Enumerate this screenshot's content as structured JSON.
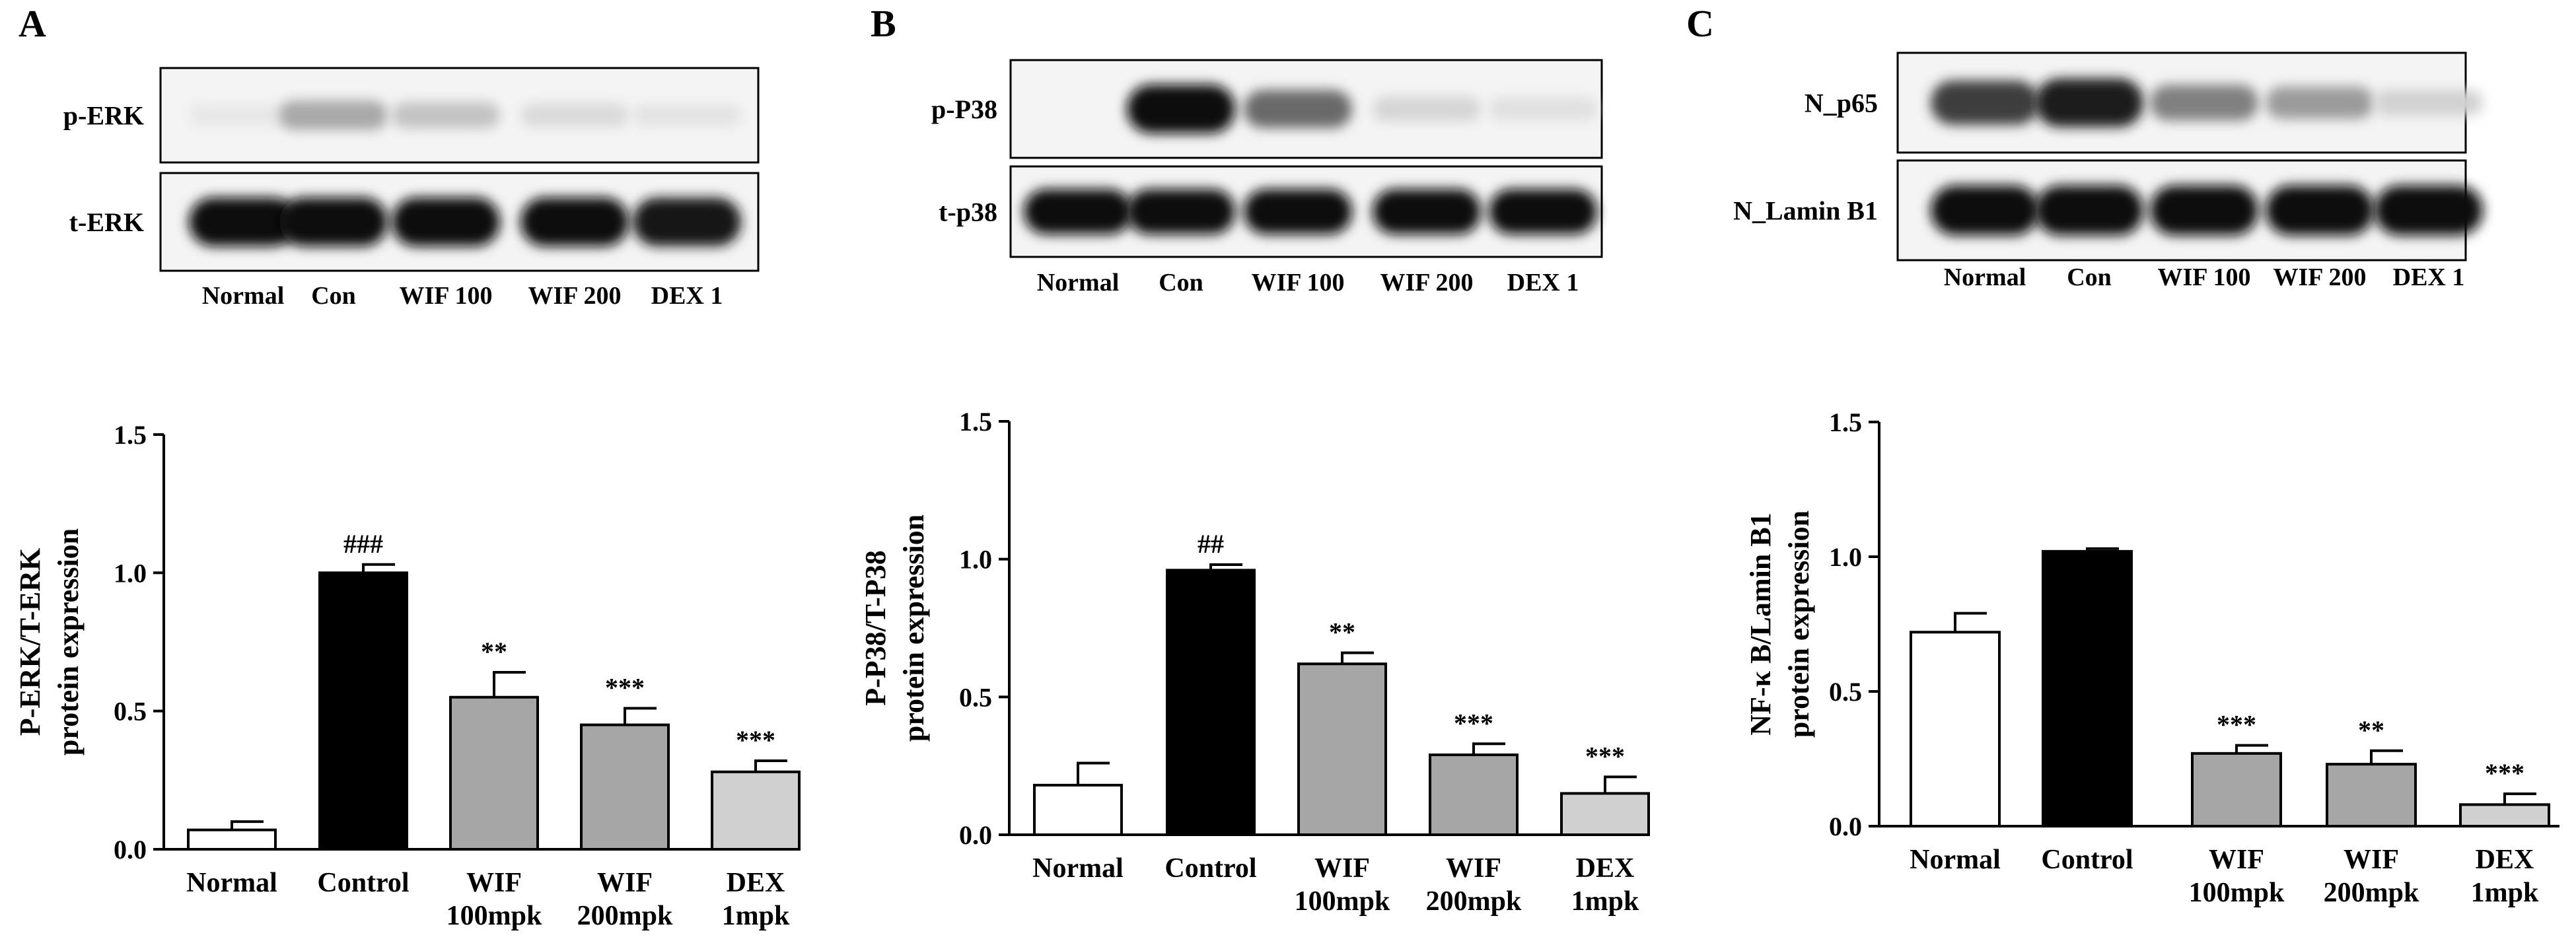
{
  "panels": [
    {
      "letter": "A",
      "blot": {
        "rows": [
          {
            "label": "p-ERK",
            "intensities": [
              0.04,
              0.32,
              0.2,
              0.1,
              0.06
            ]
          },
          {
            "label": "t-ERK",
            "intensities": [
              1.0,
              1.0,
              1.0,
              1.0,
              0.98
            ]
          }
        ],
        "lanes": [
          "Normal",
          "Con",
          "WIF 100",
          "WIF 200",
          "DEX 1"
        ]
      }
    },
    {
      "letter": "B",
      "blot": {
        "rows": [
          {
            "label": "p-P38",
            "intensities": [
              0.0,
              1.0,
              0.6,
              0.12,
              0.07
            ]
          },
          {
            "label": "t-p38",
            "intensities": [
              1.0,
              1.0,
              1.0,
              1.0,
              1.0
            ]
          }
        ],
        "lanes": [
          "Normal",
          "Con",
          "WIF 100",
          "WIF 200",
          "DEX 1"
        ]
      }
    },
    {
      "letter": "C",
      "blot": {
        "rows": [
          {
            "label": "N_p65",
            "intensities": [
              0.8,
              0.95,
              0.5,
              0.38,
              0.14
            ]
          },
          {
            "label": "N_Lamin B1",
            "intensities": [
              1.0,
              1.0,
              1.0,
              1.0,
              1.0
            ]
          }
        ],
        "lanes": [
          "Normal",
          "Con",
          "WIF 100",
          "WIF 200",
          "DEX 1"
        ]
      }
    }
  ],
  "chart_data": [
    {
      "type": "bar",
      "ylabel": [
        "P-ERK/T-ERK",
        "protein expression"
      ],
      "ylim": [
        0,
        1.5
      ],
      "yticks": [
        "0.0",
        "0.5",
        "1.0",
        "1.5"
      ],
      "categories": [
        [
          "Normal"
        ],
        [
          "Control"
        ],
        [
          "WIF",
          "100mpk"
        ],
        [
          "WIF",
          "200mpk"
        ],
        [
          "DEX",
          "1mpk"
        ]
      ],
      "values": [
        0.07,
        1.0,
        0.55,
        0.45,
        0.28
      ],
      "errors": [
        0.03,
        0.03,
        0.09,
        0.06,
        0.04
      ],
      "annotations": [
        "",
        "###",
        "**",
        "***",
        "***"
      ],
      "fills": [
        "#ffffff",
        "#000000",
        "#a6a6a6",
        "#a6a6a6",
        "#d0d0d0"
      ]
    },
    {
      "type": "bar",
      "ylabel": [
        "P-P38/T-P38",
        "protein expression"
      ],
      "ylim": [
        0,
        1.5
      ],
      "yticks": [
        "0.0",
        "0.5",
        "1.0",
        "1.5"
      ],
      "categories": [
        [
          "Normal"
        ],
        [
          "Control"
        ],
        [
          "WIF",
          "100mpk"
        ],
        [
          "WIF",
          "200mpk"
        ],
        [
          "DEX",
          "1mpk"
        ]
      ],
      "values": [
        0.18,
        0.96,
        0.62,
        0.29,
        0.15
      ],
      "errors": [
        0.08,
        0.02,
        0.04,
        0.04,
        0.06
      ],
      "annotations": [
        "",
        "##",
        "**",
        "***",
        "***"
      ],
      "fills": [
        "#ffffff",
        "#000000",
        "#a6a6a6",
        "#a6a6a6",
        "#d0d0d0"
      ]
    },
    {
      "type": "bar",
      "ylabel": [
        "NF-κ B/Lamin B1",
        "protein expression"
      ],
      "ylim": [
        0,
        1.5
      ],
      "yticks": [
        "0.0",
        "0.5",
        "1.0",
        "1.5"
      ],
      "categories": [
        [
          "Normal"
        ],
        [
          "Control"
        ],
        [
          "WIF",
          "100mpk"
        ],
        [
          "WIF",
          "200mpk"
        ],
        [
          "DEX",
          "1mpk"
        ]
      ],
      "values": [
        0.72,
        1.02,
        0.27,
        0.23,
        0.08
      ],
      "errors": [
        0.07,
        0.01,
        0.03,
        0.05,
        0.04
      ],
      "annotations": [
        "",
        "",
        "***",
        "**",
        "***"
      ],
      "fills": [
        "#ffffff",
        "#000000",
        "#a6a6a6",
        "#a6a6a6",
        "#d0d0d0"
      ]
    }
  ]
}
